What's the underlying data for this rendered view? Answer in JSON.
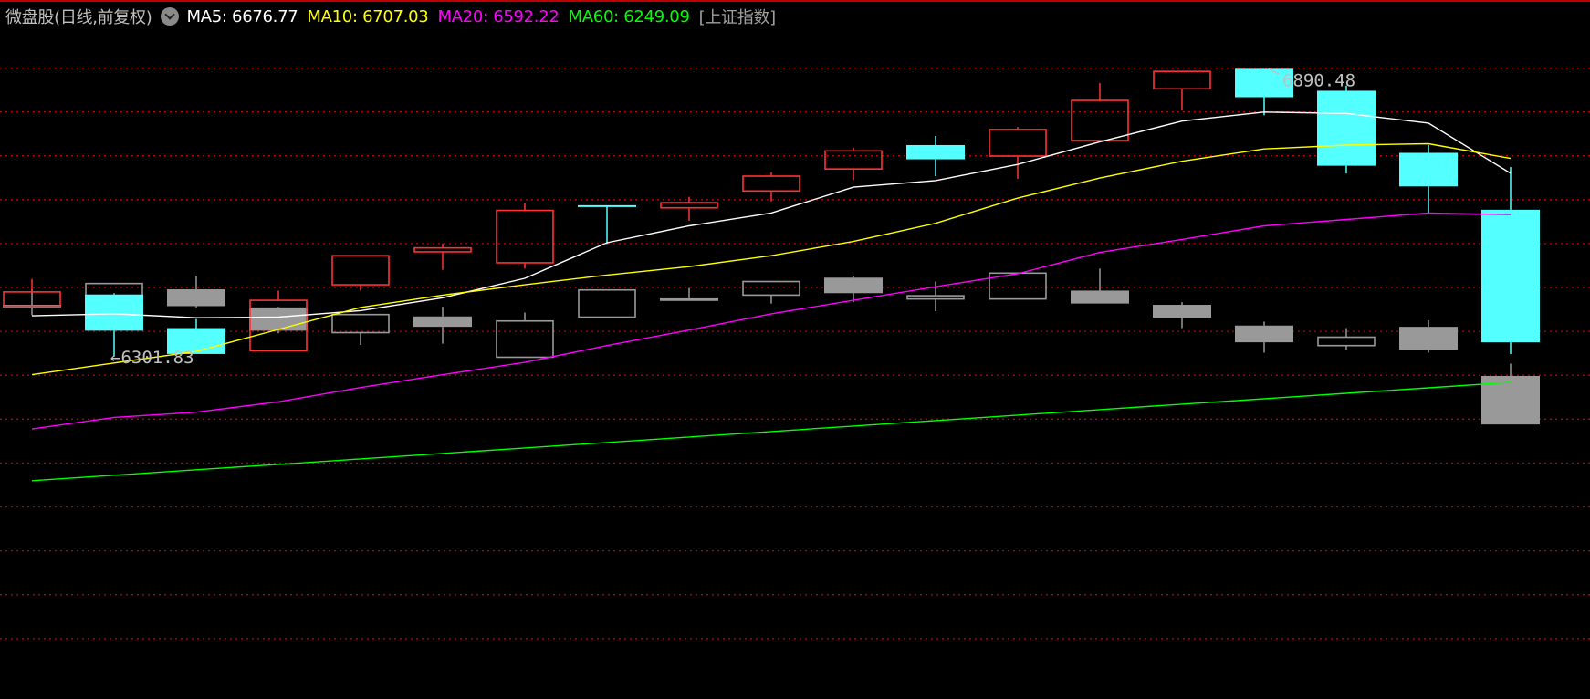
{
  "header": {
    "title": "微盘股(日线,前复权)",
    "menu_icon": "chevron-down-circle-icon",
    "ma5": "MA5: 6676.77",
    "ma10": "MA10: 6707.03",
    "ma20": "MA20: 6592.22",
    "ma60": "MA60: 6249.09",
    "overlay": "[上证指数]"
  },
  "colors": {
    "up": "#ff3232",
    "down": "#54ffff",
    "overlay": "#999999",
    "ma5": "#ffffff",
    "ma10": "#ffff00",
    "ma20": "#ff00ff",
    "ma60": "#00ff00",
    "grid": "#c00000",
    "title": "#c0c0c0",
    "accent_line": "#c00000"
  },
  "chart_data": {
    "type": "candlestick",
    "title": "微盘股(日线,前复权)",
    "ylim": [
      5601.5,
      6975.1
    ],
    "grid": "horizontal dotted",
    "annotations": {
      "high": "6890.48",
      "low": "6301.83",
      "high_label": "6890.48",
      "low_label": "←6301.83"
    },
    "candles": [
      {
        "o": 6405.0,
        "h": 6460.6,
        "l": 6403.7,
        "c": 6434.1
      },
      {
        "o": 6428.8,
        "h": 6431.5,
        "l": 6301.83,
        "c": 6354.8
      },
      {
        "o": 6360.1,
        "h": 6378.6,
        "l": 6307.1,
        "c": 6307.1
      },
      {
        "o": 6313.8,
        "h": 6436.8,
        "l": 6313.8,
        "c": 6416.9
      },
      {
        "o": 6448.7,
        "h": 6508.2,
        "l": 6436.8,
        "c": 6508.2
      },
      {
        "o": 6516.1,
        "h": 6533.3,
        "l": 6479.1,
        "c": 6524.1
      },
      {
        "o": 6493.7,
        "h": 6615.4,
        "l": 6481.8,
        "c": 6600.8
      },
      {
        "o": 6611.4,
        "h": 6611.4,
        "l": 6532.0,
        "c": 6610.1
      },
      {
        "o": 6606.1,
        "h": 6628.6,
        "l": 6579.6,
        "c": 6616.7
      },
      {
        "o": 6640.5,
        "h": 6678.9,
        "l": 6619.3,
        "c": 6670.9
      },
      {
        "o": 6685.5,
        "h": 6729.1,
        "l": 6663.0,
        "c": 6722.5
      },
      {
        "o": 6734.4,
        "h": 6752.9,
        "l": 6670.9,
        "c": 6705.3
      },
      {
        "o": 6711.9,
        "h": 6771.4,
        "l": 6665.6,
        "c": 6766.2
      },
      {
        "o": 6743.7,
        "h": 6861.4,
        "l": 6743.7,
        "c": 6825.7
      },
      {
        "o": 6849.5,
        "h": 6885.2,
        "l": 6805.8,
        "c": 6885.2
      },
      {
        "o": 6890.48,
        "h": 6890.48,
        "l": 6795.3,
        "c": 6832.3
      },
      {
        "o": 6845.5,
        "h": 6856.1,
        "l": 6676.2,
        "c": 6692.1
      },
      {
        "o": 6718.5,
        "h": 6734.4,
        "l": 6595.5,
        "c": 6649.8
      },
      {
        "o": 6602.1,
        "h": 6689.4,
        "l": 6307.1,
        "c": 6331.0
      }
    ],
    "overlay_name": "上证指数",
    "overlay_candles": [
      {
        "o": 6407.7,
        "h": 6439.4,
        "l": 6386.5,
        "c": 6402.4
      },
      {
        "o": 6408.9,
        "h": 6451.3,
        "l": 6406.4,
        "c": 6451.3
      },
      {
        "o": 6439.4,
        "h": 6465.9,
        "l": 6402.4,
        "c": 6405.0
      },
      {
        "o": 6402.4,
        "h": 6403.7,
        "l": 6349.5,
        "c": 6354.8
      },
      {
        "o": 6350.8,
        "h": 6387.8,
        "l": 6325.7,
        "c": 6387.8
      },
      {
        "o": 6383.9,
        "h": 6403.7,
        "l": 6328.3,
        "c": 6362.7
      },
      {
        "o": 6300.5,
        "h": 6391.8,
        "l": 6300.5,
        "c": 6374.6
      },
      {
        "o": 6382.5,
        "h": 6438.1,
        "l": 6382.5,
        "c": 6438.1
      },
      {
        "o": 6420.9,
        "h": 6442.1,
        "l": 6415.6,
        "c": 6415.6
      },
      {
        "o": 6427.5,
        "h": 6455.3,
        "l": 6410.3,
        "c": 6455.3
      },
      {
        "o": 6463.2,
        "h": 6465.9,
        "l": 6413.0,
        "c": 6431.5
      },
      {
        "o": 6419.6,
        "h": 6455.3,
        "l": 6394.4,
        "c": 6426.2
      },
      {
        "o": 6419.6,
        "h": 6472.5,
        "l": 6419.6,
        "c": 6472.5
      },
      {
        "o": 6436.8,
        "h": 6481.8,
        "l": 6410.3,
        "c": 6410.3
      },
      {
        "o": 6407.7,
        "h": 6413.0,
        "l": 6360.1,
        "c": 6381.2
      },
      {
        "o": 6365.3,
        "h": 6373.3,
        "l": 6309.8,
        "c": 6331.0
      },
      {
        "o": 6324.3,
        "h": 6360.1,
        "l": 6316.4,
        "c": 6341.5
      },
      {
        "o": 6362.7,
        "h": 6375.9,
        "l": 6309.8,
        "c": 6315.1
      },
      {
        "o": 6262.2,
        "h": 6287.3,
        "l": 6163.0,
        "c": 6163.0
      }
    ],
    "series": [
      {
        "name": "MA5",
        "color": "#ffffff",
        "values": [
          6385.2,
          6389.2,
          6381.2,
          6382.5,
          6395.8,
          6422.2,
          6461.9,
          6534.7,
          6569.1,
          6595.5,
          6648.4,
          6661.7,
          6694.7,
          6741.0,
          6783.4,
          6801.9,
          6799.2,
          6779.4,
          6676.77
        ]
      },
      {
        "name": "MA10",
        "color": "#ffff00",
        "values": [
          6264.8,
          6288.6,
          6312.4,
          6357.4,
          6402.4,
          6427.5,
          6448.7,
          6468.5,
          6485.7,
          6508.2,
          6537.3,
          6574.4,
          6625.9,
          6666.9,
          6701.3,
          6726.5,
          6734.4,
          6737.1,
          6707.03
        ]
      },
      {
        "name": "MA20",
        "color": "#ff00ff",
        "values": [
          6153.7,
          6177.5,
          6188.1,
          6209.3,
          6238.4,
          6264.8,
          6290.0,
          6324.3,
          6356.1,
          6389.2,
          6416.9,
          6444.7,
          6471.2,
          6514.8,
          6541.3,
          6569.1,
          6582.3,
          6595.5,
          6592.22
        ]
      },
      {
        "name": "MA60",
        "color": "#00ff00",
        "values": [
          6047.9,
          6059.1,
          6070.3,
          6081.4,
          6092.6,
          6103.8,
          6115.0,
          6126.2,
          6137.4,
          6148.5,
          6159.7,
          6170.9,
          6182.1,
          6193.3,
          6204.5,
          6215.6,
          6226.8,
          6238.0,
          6249.09
        ]
      }
    ]
  }
}
